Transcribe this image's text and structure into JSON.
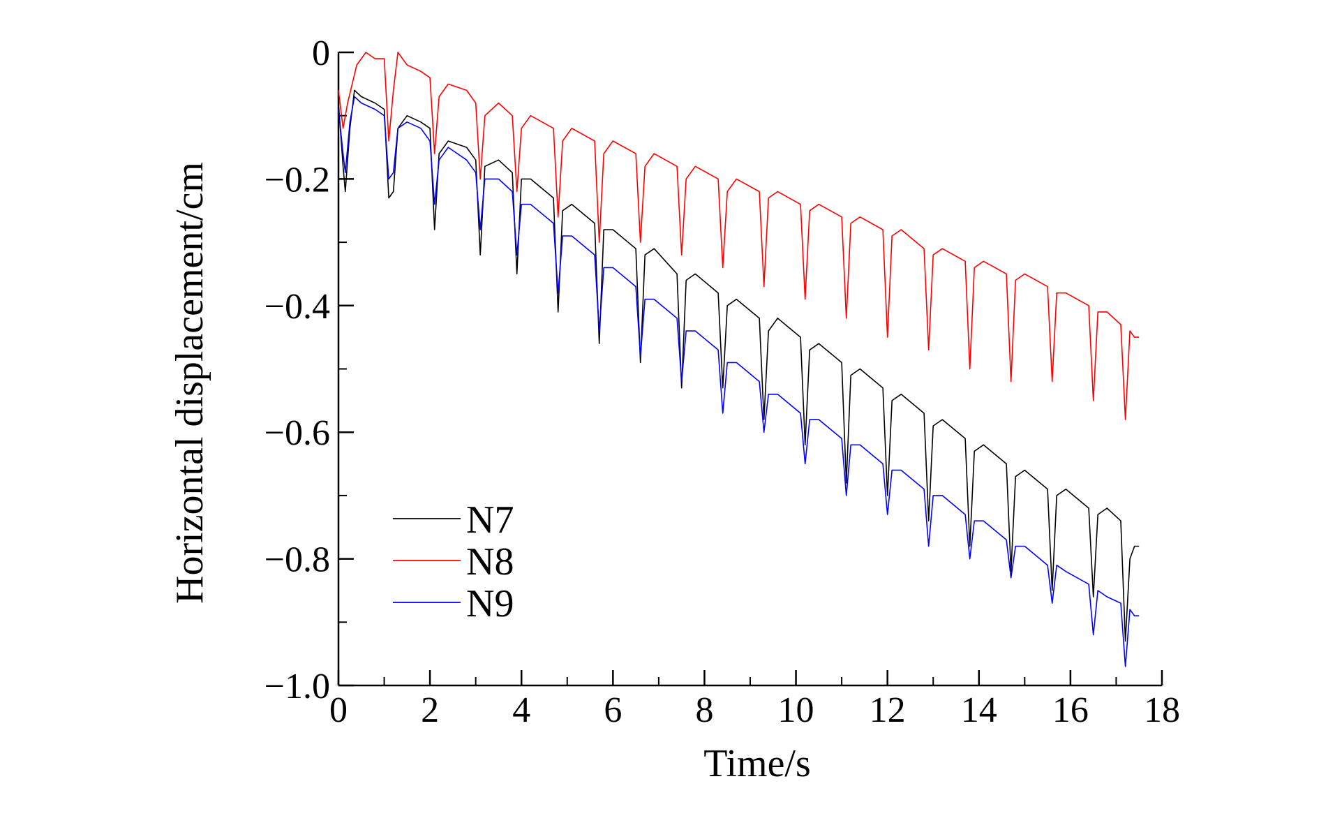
{
  "chart_data": {
    "type": "line",
    "title": "",
    "xlabel": "Time/s",
    "ylabel": "Horizontal displacement/cm",
    "xlim": [
      0,
      18
    ],
    "ylim": [
      -1.0,
      0
    ],
    "xticks": [
      0,
      2,
      4,
      6,
      8,
      10,
      12,
      14,
      16,
      18
    ],
    "xtick_labels": [
      "0",
      "2",
      "4",
      "6",
      "8",
      "10",
      "12",
      "14",
      "16",
      "18"
    ],
    "yticks": [
      0,
      -0.2,
      -0.4,
      -0.6,
      -0.8,
      -1.0
    ],
    "ytick_labels": [
      "0",
      "−0.2",
      "−0.4",
      "−0.6",
      "−0.8",
      "−1.0"
    ],
    "grid": false,
    "legend_position": "bottom-left",
    "colors": {
      "N7": "#000000",
      "N8": "#ff0000",
      "N9": "#0000ff"
    },
    "series": [
      {
        "name": "N7",
        "x": [
          0,
          0.1,
          0.15,
          0.25,
          0.35,
          0.5,
          0.8,
          1.0,
          1.1,
          1.2,
          1.3,
          1.5,
          1.8,
          2.0,
          2.1,
          2.2,
          2.4,
          2.8,
          3.0,
          3.1,
          3.2,
          3.5,
          3.8,
          3.9,
          4.0,
          4.2,
          4.7,
          4.8,
          4.9,
          5.1,
          5.6,
          5.7,
          5.8,
          6.0,
          6.5,
          6.6,
          6.7,
          6.9,
          7.4,
          7.5,
          7.6,
          7.8,
          8.3,
          8.4,
          8.5,
          8.7,
          9.2,
          9.3,
          9.4,
          9.6,
          10.1,
          10.2,
          10.3,
          10.5,
          11.0,
          11.1,
          11.2,
          11.4,
          11.9,
          12.0,
          12.1,
          12.3,
          12.8,
          12.9,
          13.0,
          13.2,
          13.7,
          13.8,
          13.9,
          14.1,
          14.6,
          14.7,
          14.8,
          15.0,
          15.5,
          15.6,
          15.7,
          15.9,
          16.4,
          16.5,
          16.6,
          16.8,
          17.1,
          17.2,
          17.3,
          17.4,
          17.5
        ],
        "values": [
          -0.08,
          -0.18,
          -0.22,
          -0.12,
          -0.06,
          -0.07,
          -0.08,
          -0.09,
          -0.23,
          -0.22,
          -0.12,
          -0.1,
          -0.11,
          -0.12,
          -0.28,
          -0.16,
          -0.14,
          -0.15,
          -0.17,
          -0.32,
          -0.18,
          -0.17,
          -0.19,
          -0.35,
          -0.2,
          -0.2,
          -0.23,
          -0.41,
          -0.25,
          -0.24,
          -0.27,
          -0.46,
          -0.28,
          -0.28,
          -0.31,
          -0.49,
          -0.32,
          -0.31,
          -0.35,
          -0.53,
          -0.36,
          -0.35,
          -0.38,
          -0.53,
          -0.4,
          -0.39,
          -0.42,
          -0.58,
          -0.44,
          -0.42,
          -0.45,
          -0.62,
          -0.47,
          -0.46,
          -0.49,
          -0.68,
          -0.51,
          -0.5,
          -0.53,
          -0.7,
          -0.55,
          -0.54,
          -0.57,
          -0.74,
          -0.59,
          -0.58,
          -0.61,
          -0.78,
          -0.63,
          -0.62,
          -0.65,
          -0.82,
          -0.67,
          -0.66,
          -0.69,
          -0.85,
          -0.7,
          -0.69,
          -0.72,
          -0.86,
          -0.73,
          -0.72,
          -0.74,
          -0.93,
          -0.8,
          -0.78,
          -0.78
        ]
      },
      {
        "name": "N8",
        "x": [
          0,
          0.1,
          0.2,
          0.4,
          0.6,
          0.8,
          1.0,
          1.1,
          1.2,
          1.3,
          1.5,
          1.8,
          2.0,
          2.1,
          2.2,
          2.4,
          2.8,
          3.0,
          3.1,
          3.2,
          3.5,
          3.8,
          3.9,
          4.0,
          4.2,
          4.7,
          4.8,
          4.9,
          5.1,
          5.6,
          5.7,
          5.8,
          6.0,
          6.5,
          6.6,
          6.7,
          6.9,
          7.4,
          7.5,
          7.6,
          7.8,
          8.3,
          8.4,
          8.5,
          8.7,
          9.2,
          9.3,
          9.4,
          9.6,
          10.1,
          10.2,
          10.3,
          10.5,
          11.0,
          11.1,
          11.2,
          11.4,
          11.9,
          12.0,
          12.1,
          12.3,
          12.8,
          12.9,
          13.0,
          13.2,
          13.7,
          13.8,
          13.9,
          14.1,
          14.6,
          14.7,
          14.8,
          15.0,
          15.5,
          15.6,
          15.7,
          15.9,
          16.4,
          16.5,
          16.6,
          16.8,
          17.1,
          17.2,
          17.3,
          17.4,
          17.5
        ],
        "values": [
          -0.06,
          -0.12,
          -0.08,
          -0.02,
          0,
          -0.01,
          -0.01,
          -0.14,
          -0.06,
          0,
          -0.02,
          -0.03,
          -0.04,
          -0.16,
          -0.07,
          -0.05,
          -0.06,
          -0.08,
          -0.2,
          -0.1,
          -0.08,
          -0.1,
          -0.22,
          -0.12,
          -0.1,
          -0.12,
          -0.26,
          -0.14,
          -0.12,
          -0.14,
          -0.3,
          -0.16,
          -0.14,
          -0.16,
          -0.3,
          -0.18,
          -0.16,
          -0.18,
          -0.32,
          -0.2,
          -0.18,
          -0.2,
          -0.34,
          -0.22,
          -0.2,
          -0.22,
          -0.37,
          -0.23,
          -0.22,
          -0.24,
          -0.39,
          -0.25,
          -0.24,
          -0.26,
          -0.42,
          -0.27,
          -0.26,
          -0.28,
          -0.45,
          -0.29,
          -0.28,
          -0.31,
          -0.47,
          -0.32,
          -0.31,
          -0.33,
          -0.5,
          -0.34,
          -0.33,
          -0.35,
          -0.52,
          -0.36,
          -0.35,
          -0.37,
          -0.52,
          -0.38,
          -0.38,
          -0.4,
          -0.55,
          -0.41,
          -0.41,
          -0.43,
          -0.58,
          -0.44,
          -0.45,
          -0.45
        ]
      },
      {
        "name": "N9",
        "x": [
          0,
          0.1,
          0.15,
          0.25,
          0.35,
          0.5,
          0.8,
          1.0,
          1.1,
          1.2,
          1.3,
          1.5,
          1.8,
          2.0,
          2.1,
          2.2,
          2.4,
          2.8,
          3.0,
          3.1,
          3.2,
          3.5,
          3.8,
          3.9,
          4.0,
          4.2,
          4.7,
          4.8,
          4.9,
          5.1,
          5.6,
          5.7,
          5.8,
          6.0,
          6.5,
          6.6,
          6.7,
          6.9,
          7.4,
          7.5,
          7.6,
          7.8,
          8.3,
          8.4,
          8.5,
          8.7,
          9.2,
          9.3,
          9.4,
          9.6,
          10.1,
          10.2,
          10.3,
          10.5,
          11.0,
          11.1,
          11.2,
          11.4,
          11.9,
          12.0,
          12.1,
          12.3,
          12.8,
          12.9,
          13.0,
          13.2,
          13.7,
          13.8,
          13.9,
          14.1,
          14.6,
          14.7,
          14.8,
          15.0,
          15.5,
          15.6,
          15.7,
          15.9,
          16.4,
          16.5,
          16.6,
          16.8,
          17.1,
          17.2,
          17.3,
          17.4,
          17.5
        ],
        "values": [
          -0.09,
          -0.16,
          -0.19,
          -0.11,
          -0.07,
          -0.08,
          -0.09,
          -0.1,
          -0.2,
          -0.19,
          -0.12,
          -0.11,
          -0.12,
          -0.14,
          -0.24,
          -0.17,
          -0.15,
          -0.17,
          -0.19,
          -0.28,
          -0.2,
          -0.2,
          -0.22,
          -0.32,
          -0.24,
          -0.24,
          -0.27,
          -0.38,
          -0.29,
          -0.29,
          -0.32,
          -0.44,
          -0.34,
          -0.34,
          -0.37,
          -0.48,
          -0.39,
          -0.39,
          -0.42,
          -0.52,
          -0.44,
          -0.44,
          -0.47,
          -0.57,
          -0.49,
          -0.49,
          -0.52,
          -0.6,
          -0.54,
          -0.54,
          -0.57,
          -0.65,
          -0.58,
          -0.58,
          -0.61,
          -0.7,
          -0.62,
          -0.62,
          -0.65,
          -0.73,
          -0.66,
          -0.66,
          -0.69,
          -0.78,
          -0.7,
          -0.7,
          -0.73,
          -0.8,
          -0.74,
          -0.74,
          -0.77,
          -0.83,
          -0.78,
          -0.78,
          -0.81,
          -0.87,
          -0.81,
          -0.82,
          -0.84,
          -0.92,
          -0.85,
          -0.86,
          -0.87,
          -0.97,
          -0.88,
          -0.89,
          -0.89
        ]
      }
    ]
  }
}
